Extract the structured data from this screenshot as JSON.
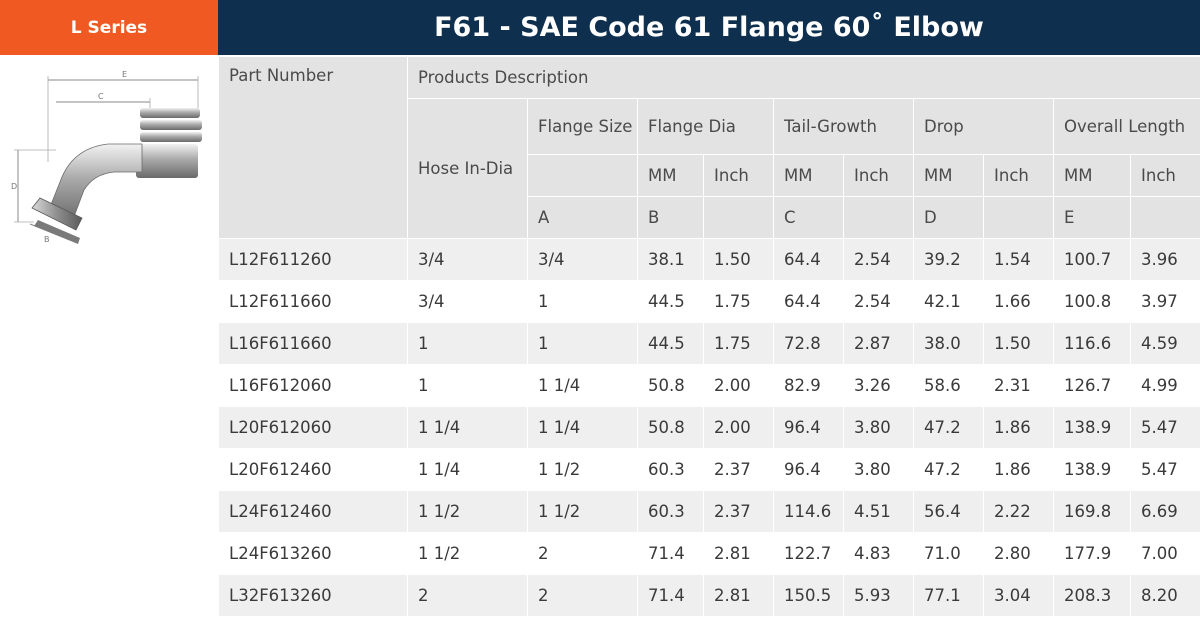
{
  "series_label": "L Series",
  "title": "F61 - SAE Code 61 Flange 60˚ Elbow",
  "diagram": {
    "labels": [
      "E",
      "C",
      "D",
      "B"
    ]
  },
  "table": {
    "part_number_header": "Part Number",
    "products_description_header": "Products Description",
    "hose_header": "Hose In-Dia",
    "flange_size_header": "Flange Size",
    "flange_dia_header": "Flange Dia",
    "tail_growth_header": "Tail-Growth",
    "drop_header": "Drop",
    "overall_length_header": "Overall Length",
    "unit_mm": "MM",
    "unit_inch": "Inch",
    "letters": {
      "flange_size": "A",
      "flange_dia": "B",
      "tail_growth": "C",
      "drop": "D",
      "overall_length": "E"
    },
    "rows": [
      [
        "L12F611260",
        "3/4",
        "3/4",
        "38.1",
        "1.50",
        "64.4",
        "2.54",
        "39.2",
        "1.54",
        "100.7",
        "3.96"
      ],
      [
        "L12F611660",
        "3/4",
        "1",
        "44.5",
        "1.75",
        "64.4",
        "2.54",
        "42.1",
        "1.66",
        "100.8",
        "3.97"
      ],
      [
        "L16F611660",
        "1",
        "1",
        "44.5",
        "1.75",
        "72.8",
        "2.87",
        "38.0",
        "1.50",
        "116.6",
        "4.59"
      ],
      [
        "L16F612060",
        "1",
        "1 1/4",
        "50.8",
        "2.00",
        "82.9",
        "3.26",
        "58.6",
        "2.31",
        "126.7",
        "4.99"
      ],
      [
        "L20F612060",
        "1 1/4",
        "1 1/4",
        "50.8",
        "2.00",
        "96.4",
        "3.80",
        "47.2",
        "1.86",
        "138.9",
        "5.47"
      ],
      [
        "L20F612460",
        "1 1/4",
        "1 1/2",
        "60.3",
        "2.37",
        "96.4",
        "3.80",
        "47.2",
        "1.86",
        "138.9",
        "5.47"
      ],
      [
        "L24F612460",
        "1 1/2",
        "1 1/2",
        "60.3",
        "2.37",
        "114.6",
        "4.51",
        "56.4",
        "2.22",
        "169.8",
        "6.69"
      ],
      [
        "L24F613260",
        "1 1/2",
        "2",
        "71.4",
        "2.81",
        "122.7",
        "4.83",
        "71.0",
        "2.80",
        "177.9",
        "7.00"
      ],
      [
        "L32F613260",
        "2",
        "2",
        "71.4",
        "2.81",
        "150.5",
        "5.93",
        "77.1",
        "3.04",
        "208.3",
        "8.20"
      ]
    ]
  }
}
